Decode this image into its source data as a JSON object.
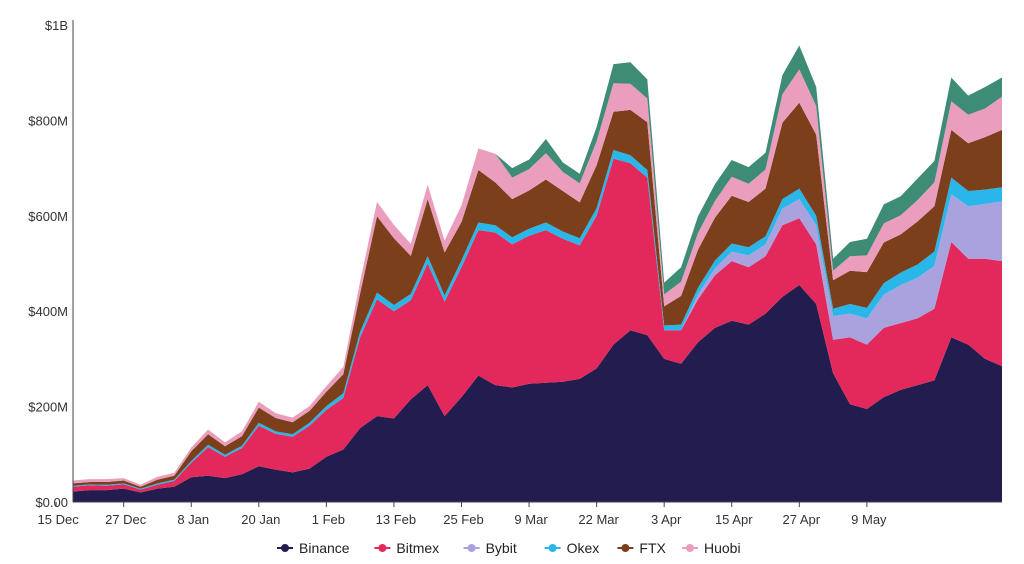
{
  "chart_data": {
    "type": "area",
    "stacked": true,
    "title": "",
    "xlabel": "",
    "ylabel": "",
    "ylim": [
      0,
      1000000000
    ],
    "grid": false,
    "legend_position": "bottom-center",
    "y_ticks": [
      {
        "value": 0,
        "label": "$0.00"
      },
      {
        "value": 200000000,
        "label": "$200M"
      },
      {
        "value": 400000000,
        "label": "$400M"
      },
      {
        "value": 600000000,
        "label": "$600M"
      },
      {
        "value": 800000000,
        "label": "$800M"
      },
      {
        "value": 1000000000,
        "label": "$1B"
      }
    ],
    "x_tick_labels": [
      "15 Dec",
      "27 Dec",
      "8 Jan",
      "20 Jan",
      "1 Feb",
      "13 Feb",
      "25 Feb",
      "9 Mar",
      "22 Mar",
      "3 Apr",
      "15 Apr",
      "27 Apr",
      "9 May"
    ],
    "x_start_label": "15 Dec",
    "x": [
      "12 Dec",
      "16 Dec",
      "21 Dec",
      "25 Dec",
      "27 Dec",
      "30 Dec",
      "3 Jan",
      "8 Jan",
      "11 Jan",
      "14 Jan",
      "17 Jan",
      "20 Jan",
      "23 Jan",
      "27 Jan",
      "1 Feb",
      "4 Feb",
      "7 Feb",
      "10 Feb",
      "13 Feb",
      "16 Feb",
      "19 Feb",
      "21 Feb",
      "23 Feb",
      "25 Feb",
      "27 Feb",
      "1 Mar",
      "3 Mar",
      "6 Mar",
      "9 Mar",
      "12 Mar",
      "15 Mar",
      "18 Mar",
      "20 Mar",
      "22 Mar",
      "24 Mar",
      "26 Mar",
      "28 Mar",
      "31 Mar",
      "3 Apr",
      "6 Apr",
      "9 Apr",
      "12 Apr",
      "15 Apr",
      "17 Apr",
      "19 Apr",
      "21 Apr",
      "24 Apr",
      "27 Apr",
      "30 Apr",
      "3 May",
      "6 May",
      "8 May",
      "9 May",
      "11 May",
      "13 May",
      "15 May"
    ],
    "series": [
      {
        "name": "Binance",
        "color": "#231d4f",
        "values": [
          22,
          25,
          25,
          28,
          20,
          28,
          32,
          52,
          55,
          50,
          58,
          75,
          68,
          62,
          70,
          95,
          110,
          155,
          180,
          175,
          215,
          245,
          180,
          220,
          265,
          245,
          240,
          248,
          250,
          252,
          258,
          280,
          330,
          360,
          350,
          300,
          290,
          335,
          365,
          380,
          372,
          395,
          430,
          455,
          415,
          270,
          205,
          195,
          220,
          235,
          245,
          255,
          345,
          330,
          300,
          285
        ]
      },
      {
        "name": "Bitmex",
        "color": "#e3285b",
        "values": [
          10,
          10,
          9,
          9,
          6,
          8,
          12,
          30,
          60,
          45,
          55,
          85,
          75,
          75,
          90,
          98,
          108,
          190,
          245,
          225,
          208,
          255,
          240,
          272,
          305,
          320,
          300,
          310,
          320,
          300,
          280,
          320,
          390,
          350,
          330,
          60,
          70,
          90,
          110,
          125,
          120,
          120,
          150,
          140,
          125,
          70,
          140,
          135,
          145,
          140,
          140,
          150,
          200,
          180,
          210,
          220
        ]
      },
      {
        "name": "Bybit",
        "color": "#a9a2de",
        "values": [
          0,
          0,
          0,
          0,
          0,
          0,
          0,
          0,
          0,
          0,
          0,
          0,
          0,
          0,
          0,
          0,
          0,
          0,
          0,
          0,
          0,
          0,
          0,
          0,
          0,
          0,
          0,
          0,
          0,
          0,
          0,
          0,
          0,
          0,
          0,
          0,
          0,
          10,
          15,
          20,
          25,
          25,
          35,
          40,
          40,
          50,
          50,
          55,
          70,
          80,
          85,
          90,
          100,
          110,
          115,
          125
        ]
      },
      {
        "name": "Okex",
        "color": "#28b7e8",
        "values": [
          2,
          2,
          2,
          2,
          2,
          3,
          3,
          4,
          5,
          4,
          5,
          6,
          5,
          5,
          6,
          8,
          10,
          12,
          14,
          13,
          13,
          15,
          13,
          15,
          16,
          15,
          15,
          15,
          16,
          15,
          15,
          16,
          18,
          17,
          16,
          10,
          12,
          14,
          16,
          17,
          17,
          17,
          20,
          22,
          20,
          15,
          20,
          22,
          24,
          26,
          28,
          30,
          35,
          32,
          30,
          30
        ]
      },
      {
        "name": "FTX",
        "color": "#7b3f1c",
        "values": [
          5,
          5,
          6,
          6,
          4,
          8,
          8,
          20,
          22,
          18,
          20,
          32,
          28,
          25,
          25,
          30,
          40,
          80,
          160,
          140,
          80,
          120,
          90,
          80,
          110,
          90,
          80,
          80,
          90,
          85,
          75,
          90,
          80,
          95,
          100,
          40,
          60,
          80,
          90,
          100,
          95,
          100,
          160,
          180,
          170,
          60,
          70,
          75,
          85,
          80,
          90,
          95,
          100,
          100,
          110,
          120
        ]
      },
      {
        "name": "Huobi",
        "color": "#eb9dbd",
        "values": [
          6,
          6,
          6,
          5,
          4,
          6,
          6,
          8,
          10,
          8,
          10,
          12,
          10,
          10,
          10,
          12,
          15,
          25,
          30,
          28,
          25,
          30,
          25,
          35,
          45,
          60,
          45,
          45,
          55,
          40,
          40,
          50,
          60,
          55,
          50,
          25,
          30,
          35,
          35,
          40,
          38,
          40,
          60,
          70,
          60,
          20,
          30,
          35,
          40,
          40,
          45,
          50,
          60,
          60,
          60,
          70
        ]
      },
      {
        "name": "",
        "color": "#3f8c76",
        "values": [
          0,
          0,
          0,
          0,
          0,
          0,
          0,
          0,
          0,
          0,
          0,
          0,
          0,
          0,
          0,
          0,
          0,
          0,
          0,
          0,
          0,
          0,
          0,
          0,
          0,
          0,
          20,
          20,
          30,
          20,
          20,
          30,
          40,
          45,
          40,
          25,
          30,
          35,
          35,
          35,
          35,
          35,
          40,
          50,
          40,
          25,
          30,
          35,
          40,
          40,
          45,
          45,
          50,
          40,
          45,
          40
        ]
      }
    ]
  }
}
